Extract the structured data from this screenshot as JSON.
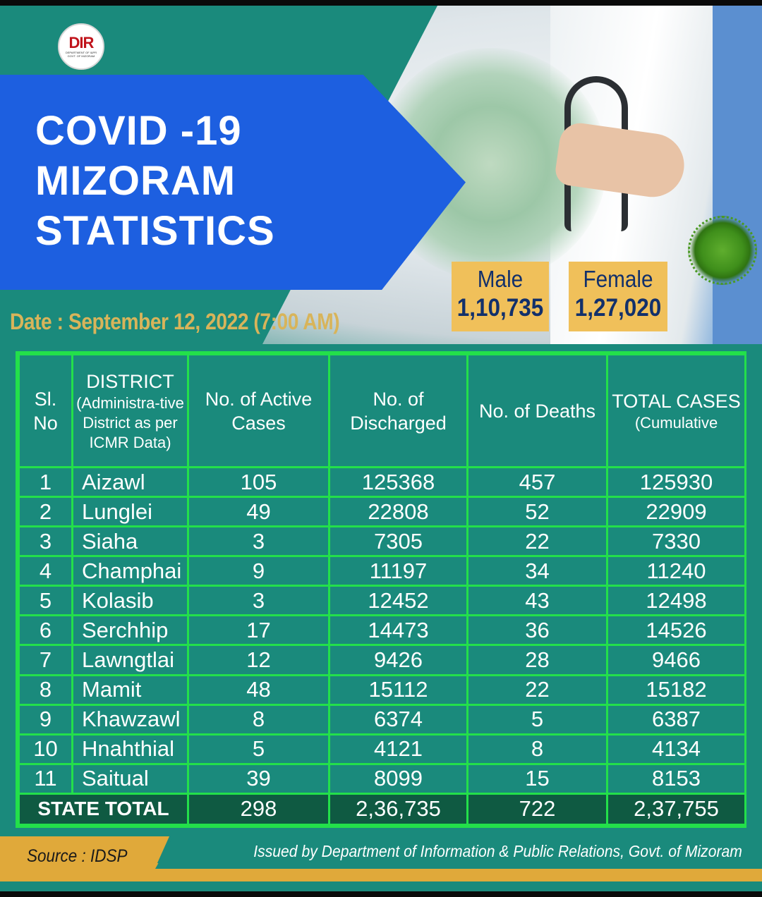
{
  "logo": {
    "mark": "DIR",
    "sub": "DEPARTMENT OF I&PR GOVT. OF MIZORAM"
  },
  "banner": {
    "line1": "COVID -19",
    "line2": "MIZORAM",
    "line3": "STATISTICS"
  },
  "date": "Date : September 12, 2022 (7:00 AM)",
  "gender": {
    "male_label": "Male",
    "male_value": "1,10,735",
    "female_label": "Female",
    "female_value": "1,27,020"
  },
  "table": {
    "headers": {
      "sl": "Sl. No",
      "district": "DISTRICT",
      "district_note": "(Administra-tive District as per ICMR Data)",
      "active": "No. of Active Cases",
      "discharged": "No. of Discharged",
      "deaths": "No. of Deaths",
      "total": "TOTAL CASES",
      "total_note": "(Cumulative"
    },
    "rows": [
      {
        "sl": "1",
        "district": "Aizawl",
        "active": "105",
        "discharged": "125368",
        "deaths": "457",
        "total": "125930"
      },
      {
        "sl": "2",
        "district": "Lunglei",
        "active": "49",
        "discharged": "22808",
        "deaths": "52",
        "total": "22909"
      },
      {
        "sl": "3",
        "district": "Siaha",
        "active": "3",
        "discharged": "7305",
        "deaths": "22",
        "total": "7330"
      },
      {
        "sl": "4",
        "district": "Champhai",
        "active": "9",
        "discharged": "11197",
        "deaths": "34",
        "total": "11240"
      },
      {
        "sl": "5",
        "district": "Kolasib",
        "active": "3",
        "discharged": "12452",
        "deaths": "43",
        "total": "12498"
      },
      {
        "sl": "6",
        "district": "Serchhip",
        "active": "17",
        "discharged": "14473",
        "deaths": "36",
        "total": "14526"
      },
      {
        "sl": "7",
        "district": "Lawngtlai",
        "active": "12",
        "discharged": "9426",
        "deaths": "28",
        "total": "9466"
      },
      {
        "sl": "8",
        "district": "Mamit",
        "active": "48",
        "discharged": "15112",
        "deaths": "22",
        "total": "15182"
      },
      {
        "sl": "9",
        "district": "Khawzawl",
        "active": "8",
        "discharged": "6374",
        "deaths": "5",
        "total": "6387"
      },
      {
        "sl": "10",
        "district": "Hnahthial",
        "active": "5",
        "discharged": "4121",
        "deaths": "8",
        "total": "4134"
      },
      {
        "sl": "11",
        "district": "Saitual",
        "active": "39",
        "discharged": "8099",
        "deaths": "15",
        "total": "8153"
      }
    ],
    "state_total": {
      "label": "STATE TOTAL",
      "active": "298",
      "discharged": "2,36,735",
      "deaths": "722",
      "total": "2,37,755"
    }
  },
  "footer": {
    "source": "Source : IDSP",
    "issued": "Issued by Department of  Information & Public Relations, Govt. of Mizoram"
  },
  "colors": {
    "background": "#1a8a7c",
    "banner": "#1d5fe0",
    "grid": "#23e04a",
    "accent": "#f0c05a",
    "total_row": "#0f5a42"
  }
}
